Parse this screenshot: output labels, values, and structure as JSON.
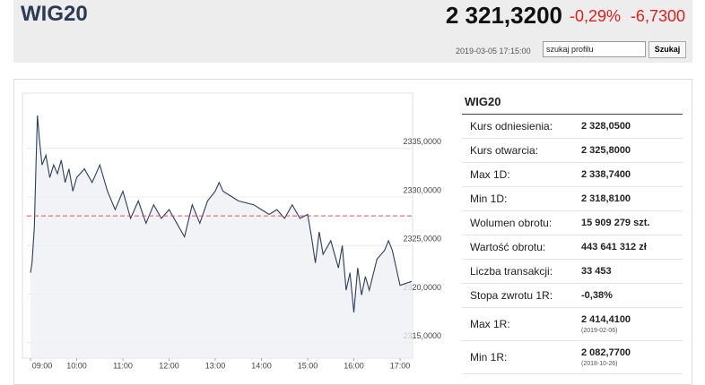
{
  "header": {
    "title": "WIG20",
    "price": "2 321,3200",
    "change_pct": "-0,29%",
    "change_abs": "-6,7300",
    "timestamp": "2019-03-05 17:15:00",
    "search_placeholder": "szukaj profilu",
    "search_button": "Szukaj"
  },
  "chart_data": {
    "type": "line",
    "x": [
      "09:00",
      "09:02",
      "09:05",
      "09:07",
      "09:09",
      "09:12",
      "09:15",
      "09:20",
      "09:25",
      "09:30",
      "09:35",
      "09:40",
      "09:45",
      "09:50",
      "09:55",
      "10:00",
      "10:10",
      "10:20",
      "10:30",
      "10:40",
      "10:50",
      "11:00",
      "11:10",
      "11:20",
      "11:30",
      "11:40",
      "11:50",
      "12:00",
      "12:10",
      "12:20",
      "12:30",
      "12:40",
      "12:50",
      "13:00",
      "13:05",
      "13:10",
      "13:30",
      "13:50",
      "14:00",
      "14:10",
      "14:20",
      "14:30",
      "14:40",
      "14:50",
      "15:00",
      "15:05",
      "15:10",
      "15:15",
      "15:20",
      "15:30",
      "15:40",
      "15:45",
      "15:50",
      "15:55",
      "16:00",
      "16:05",
      "16:10",
      "16:15",
      "16:20",
      "16:30",
      "16:40",
      "16:45",
      "16:50",
      "17:00",
      "17:15"
    ],
    "series": [
      {
        "name": "WIG20",
        "color": "#2e3d5c",
        "values": [
          2322.2,
          2323.2,
          2326.9,
          2332.9,
          2338.4,
          2335.6,
          2333.3,
          2334.3,
          2332.0,
          2333.3,
          2332.4,
          2333.8,
          2331.5,
          2332.9,
          2330.6,
          2332.0,
          2332.9,
          2331.5,
          2333.3,
          2330.6,
          2328.7,
          2330.6,
          2327.8,
          2329.6,
          2327.3,
          2329.2,
          2327.8,
          2328.7,
          2327.3,
          2325.9,
          2329.2,
          2327.3,
          2329.6,
          2330.6,
          2331.5,
          2330.6,
          2329.6,
          2329.2,
          2328.7,
          2328.2,
          2328.7,
          2327.8,
          2329.2,
          2327.8,
          2328.2,
          2325.9,
          2323.2,
          2326.4,
          2324.1,
          2325.5,
          2322.7,
          2325.0,
          2320.4,
          2322.2,
          2318.1,
          2322.7,
          2319.9,
          2321.8,
          2320.4,
          2323.6,
          2324.5,
          2325.5,
          2324.5,
          2320.9,
          2321.3
        ]
      }
    ],
    "reference_value": 2328.05,
    "reference_color": "#e05050",
    "ylim": [
      2313.4,
      2340.7
    ],
    "yticks": [
      {
        "value": 2315,
        "label": "2315,0000"
      },
      {
        "value": 2320,
        "label": "2320,0000"
      },
      {
        "value": 2325,
        "label": "2325,0000"
      },
      {
        "value": 2330,
        "label": "2330,0000"
      },
      {
        "value": 2335,
        "label": "2335,0000"
      }
    ],
    "xticks": [
      "09:00",
      "10:00",
      "11:00",
      "12:00",
      "13:00",
      "14:00",
      "15:00",
      "16:00",
      "17:00"
    ],
    "grid": true
  },
  "table": {
    "title": "WIG20",
    "rows": [
      {
        "label": "Kurs odniesienia:",
        "value": "2 328,0500"
      },
      {
        "label": "Kurs otwarcia:",
        "value": "2 325,8000"
      },
      {
        "label": "Max 1D:",
        "value": "2 338,7400"
      },
      {
        "label": "Min 1D:",
        "value": "2 318,8100"
      },
      {
        "label": "Wolumen obrotu:",
        "value": "15 909 279 szt."
      },
      {
        "label": "Wartość obrotu:",
        "value": "443 641 312 zł"
      },
      {
        "label": "Liczba transakcji:",
        "value": "33 453"
      },
      {
        "label": "Stopa zwrotu 1R:",
        "value": "-0,38%"
      },
      {
        "label": "Max 1R:",
        "value": "2 414,4100",
        "note": "(2019-02-06)"
      },
      {
        "label": "Min 1R:",
        "value": "2 082,7700",
        "note": "(2018-10-26)"
      }
    ]
  }
}
